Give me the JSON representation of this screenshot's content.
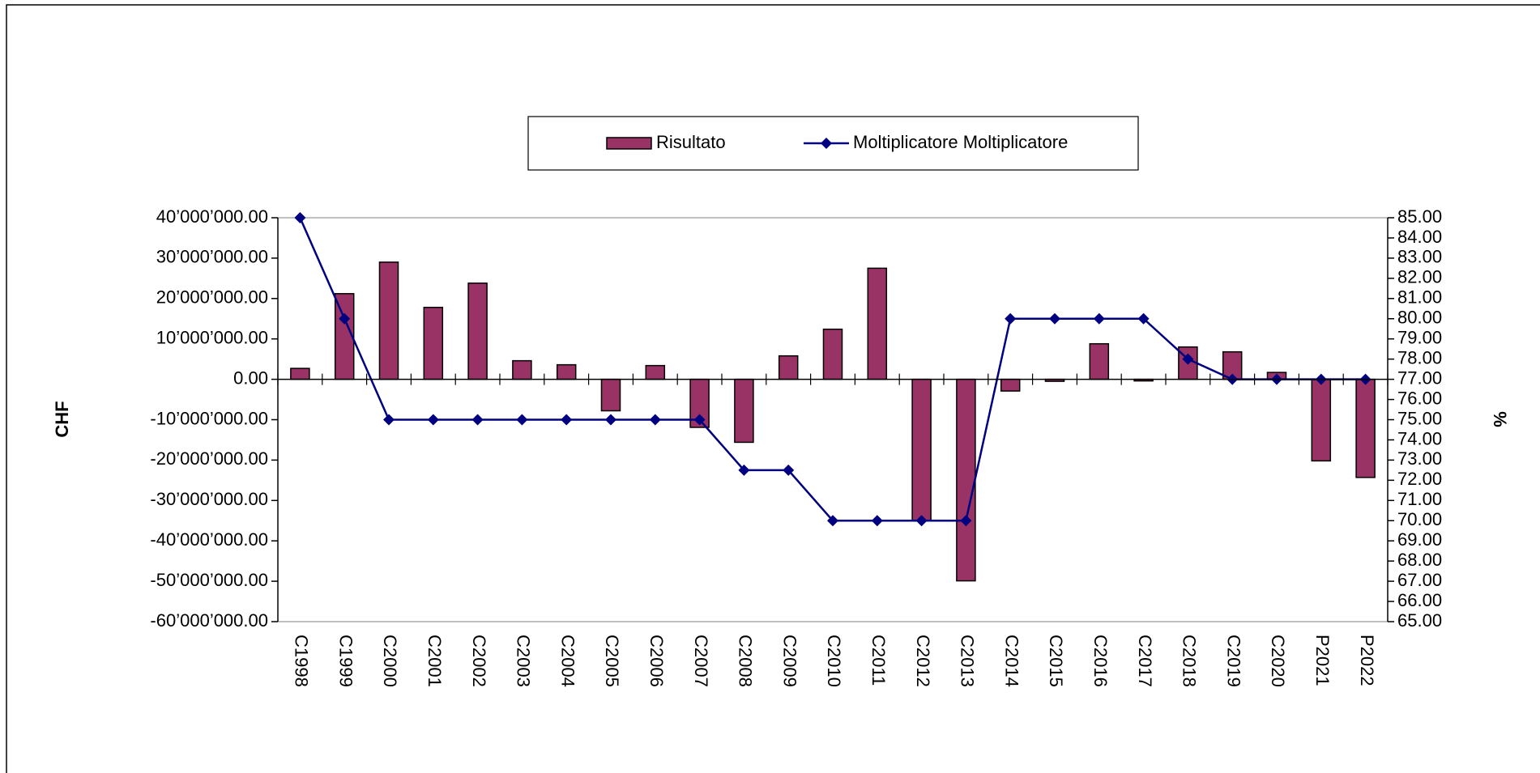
{
  "chart_data": {
    "type": "bar_line",
    "categories": [
      "C1998",
      "C1999",
      "C2000",
      "C2001",
      "C2002",
      "C2003",
      "C2004",
      "C2005",
      "C2006",
      "C2007",
      "C2008",
      "C2009",
      "C2010",
      "C2011",
      "C2012",
      "C2013",
      "C2014",
      "C2015",
      "C2016",
      "C2017",
      "C2018",
      "C2019",
      "C2020",
      "P2021",
      "P2022"
    ],
    "series": [
      {
        "name": "Risultato",
        "type": "bar",
        "color": "#993366",
        "values": [
          2700000,
          21200000,
          29000000,
          17800000,
          23800000,
          4600000,
          3600000,
          -7800000,
          3400000,
          -11900000,
          -15600000,
          5800000,
          12400000,
          27500000,
          -35000000,
          -49900000,
          -2900000,
          -500000,
          8800000,
          -400000,
          8000000,
          6800000,
          1700000,
          -20200000,
          -24300000
        ]
      },
      {
        "name": "Moltiplicatore Moltiplicatore",
        "type": "line",
        "axis": "y2",
        "color": "#000080",
        "values": [
          85,
          80,
          75,
          75,
          75,
          75,
          75,
          75,
          75,
          75,
          72.5,
          72.5,
          70,
          70,
          70,
          70,
          80,
          80,
          80,
          80,
          78,
          77,
          77,
          77,
          77
        ]
      }
    ],
    "y_label": "CHF",
    "y2_label": "%",
    "ylim": [
      -60000000,
      40000000
    ],
    "yticks": [
      {
        "value": 40000000,
        "label": "40’000’000.00"
      },
      {
        "value": 30000000,
        "label": "30’000’000.00"
      },
      {
        "value": 20000000,
        "label": "20’000’000.00"
      },
      {
        "value": 10000000,
        "label": "10’000’000.00"
      },
      {
        "value": 0,
        "label": "0.00"
      },
      {
        "value": -10000000,
        "label": "-10’000’000.00"
      },
      {
        "value": -20000000,
        "label": "-20’000’000.00"
      },
      {
        "value": -30000000,
        "label": "-30’000’000.00"
      },
      {
        "value": -40000000,
        "label": "-40’000’000.00"
      },
      {
        "value": -50000000,
        "label": "-50’000’000.00"
      },
      {
        "value": -60000000,
        "label": "-60’000’000.00"
      }
    ],
    "negative_tick_color": "#ff0000",
    "y2lim": [
      65,
      85
    ],
    "y2ticks": [
      {
        "value": 85,
        "label": "85.00"
      },
      {
        "value": 84,
        "label": "84.00"
      },
      {
        "value": 83,
        "label": "83.00"
      },
      {
        "value": 82,
        "label": "82.00"
      },
      {
        "value": 81,
        "label": "81.00"
      },
      {
        "value": 80,
        "label": "80.00"
      },
      {
        "value": 79,
        "label": "79.00"
      },
      {
        "value": 78,
        "label": "78.00"
      },
      {
        "value": 77,
        "label": "77.00"
      },
      {
        "value": 76,
        "label": "76.00"
      },
      {
        "value": 75,
        "label": "75.00"
      },
      {
        "value": 74,
        "label": "74.00"
      },
      {
        "value": 73,
        "label": "73.00"
      },
      {
        "value": 72,
        "label": "72.00"
      },
      {
        "value": 71,
        "label": "71.00"
      },
      {
        "value": 70,
        "label": "70.00"
      },
      {
        "value": 69,
        "label": "69.00"
      },
      {
        "value": 68,
        "label": "68.00"
      },
      {
        "value": 67,
        "label": "67.00"
      },
      {
        "value": 66,
        "label": "66.00"
      },
      {
        "value": 65,
        "label": "65.00"
      }
    ],
    "legend": "top",
    "grid": false
  }
}
